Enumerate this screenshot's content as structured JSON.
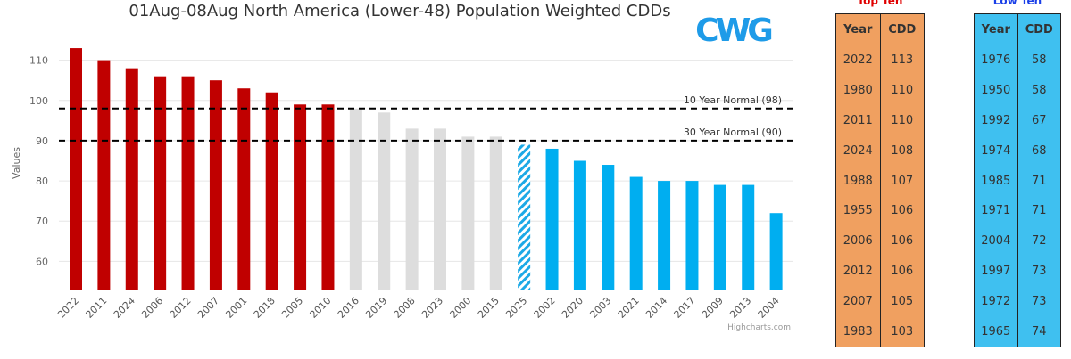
{
  "chart_data": {
    "type": "bar",
    "title": "01Aug-08Aug North America (Lower-48) Population Weighted CDDs",
    "ylabel": "Values",
    "xlabel": "",
    "ylim": [
      53,
      117
    ],
    "yticks": [
      60,
      70,
      80,
      90,
      100,
      110
    ],
    "categories": [
      "2022",
      "2011",
      "2024",
      "2006",
      "2012",
      "2007",
      "2001",
      "2018",
      "2005",
      "2010",
      "2016",
      "2019",
      "2008",
      "2023",
      "2000",
      "2015",
      "2025",
      "2002",
      "2020",
      "2003",
      "2021",
      "2014",
      "2017",
      "2009",
      "2013",
      "2004"
    ],
    "values": [
      113,
      110,
      108,
      106,
      106,
      105,
      103,
      102,
      99,
      99,
      98,
      97,
      93,
      93,
      91,
      91,
      89,
      88,
      85,
      84,
      81,
      80,
      80,
      79,
      79,
      72
    ],
    "bar_groups": [
      "top",
      "top",
      "top",
      "top",
      "top",
      "top",
      "top",
      "top",
      "top",
      "top",
      "mid",
      "mid",
      "mid",
      "mid",
      "mid",
      "mid",
      "current",
      "low",
      "low",
      "low",
      "low",
      "low",
      "low",
      "low",
      "low",
      "low"
    ],
    "colors": {
      "top": "#c00000",
      "mid": "#dddddd",
      "current": "#1ca9e6",
      "low": "#00aef0"
    },
    "plot_lines": [
      {
        "value": 98,
        "label": "10 Year Normal (98)"
      },
      {
        "value": 90,
        "label": "30 Year Normal (90)"
      }
    ],
    "grid": true
  },
  "credits": "Highcharts.com",
  "logo": {
    "text": "CWG",
    "color": "#1e9be8"
  },
  "top_ten": {
    "caption": "Top Ten",
    "caption_color": "#e00000",
    "headers": [
      "Year",
      "CDD"
    ],
    "rows": [
      [
        "2022",
        "113"
      ],
      [
        "1980",
        "110"
      ],
      [
        "2011",
        "110"
      ],
      [
        "2024",
        "108"
      ],
      [
        "1988",
        "107"
      ],
      [
        "1955",
        "106"
      ],
      [
        "2006",
        "106"
      ],
      [
        "2012",
        "106"
      ],
      [
        "2007",
        "105"
      ],
      [
        "1983",
        "103"
      ]
    ]
  },
  "low_ten": {
    "caption": "Low Ten",
    "caption_color": "#1a3fe8",
    "headers": [
      "Year",
      "CDD"
    ],
    "rows": [
      [
        "1976",
        "58"
      ],
      [
        "1950",
        "58"
      ],
      [
        "1992",
        "67"
      ],
      [
        "1974",
        "68"
      ],
      [
        "1985",
        "71"
      ],
      [
        "1971",
        "71"
      ],
      [
        "2004",
        "72"
      ],
      [
        "1997",
        "73"
      ],
      [
        "1972",
        "73"
      ],
      [
        "1965",
        "74"
      ]
    ]
  }
}
